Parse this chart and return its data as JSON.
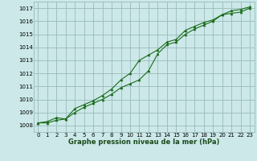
{
  "title": "Graphe pression niveau de la mer (hPa)",
  "background_color": "#cce8e8",
  "grid_color": "#99bbbb",
  "line_color": "#1a6b1a",
  "xlim": [
    -0.5,
    23.5
  ],
  "ylim": [
    1007.5,
    1017.5
  ],
  "xticks": [
    0,
    1,
    2,
    3,
    4,
    5,
    6,
    7,
    8,
    9,
    10,
    11,
    12,
    13,
    14,
    15,
    16,
    17,
    18,
    19,
    20,
    21,
    22,
    23
  ],
  "yticks": [
    1008,
    1009,
    1010,
    1011,
    1012,
    1013,
    1014,
    1015,
    1016,
    1017
  ],
  "series1_x": [
    0,
    1,
    2,
    3,
    4,
    5,
    6,
    7,
    8,
    9,
    10,
    11,
    12,
    13,
    14,
    15,
    16,
    17,
    18,
    19,
    20,
    21,
    22,
    23
  ],
  "series1_y": [
    1008.2,
    1008.2,
    1008.4,
    1008.5,
    1009.0,
    1009.4,
    1009.7,
    1010.0,
    1010.4,
    1010.9,
    1011.2,
    1011.5,
    1012.2,
    1013.5,
    1014.2,
    1014.4,
    1015.0,
    1015.4,
    1015.7,
    1016.0,
    1016.5,
    1016.6,
    1016.7,
    1017.0
  ],
  "series2_x": [
    0,
    1,
    2,
    3,
    4,
    5,
    6,
    7,
    8,
    9,
    10,
    11,
    12,
    13,
    14,
    15,
    16,
    17,
    18,
    19,
    20,
    21,
    22,
    23
  ],
  "series2_y": [
    1008.2,
    1008.3,
    1008.6,
    1008.5,
    1009.3,
    1009.6,
    1009.9,
    1010.3,
    1010.8,
    1011.5,
    1012.0,
    1013.0,
    1013.4,
    1013.8,
    1014.4,
    1014.6,
    1015.3,
    1015.6,
    1015.9,
    1016.1,
    1016.5,
    1016.8,
    1016.9,
    1017.1
  ],
  "title_fontsize": 6.0,
  "tick_fontsize": 5.0,
  "fig_width": 3.2,
  "fig_height": 2.0,
  "dpi": 100
}
